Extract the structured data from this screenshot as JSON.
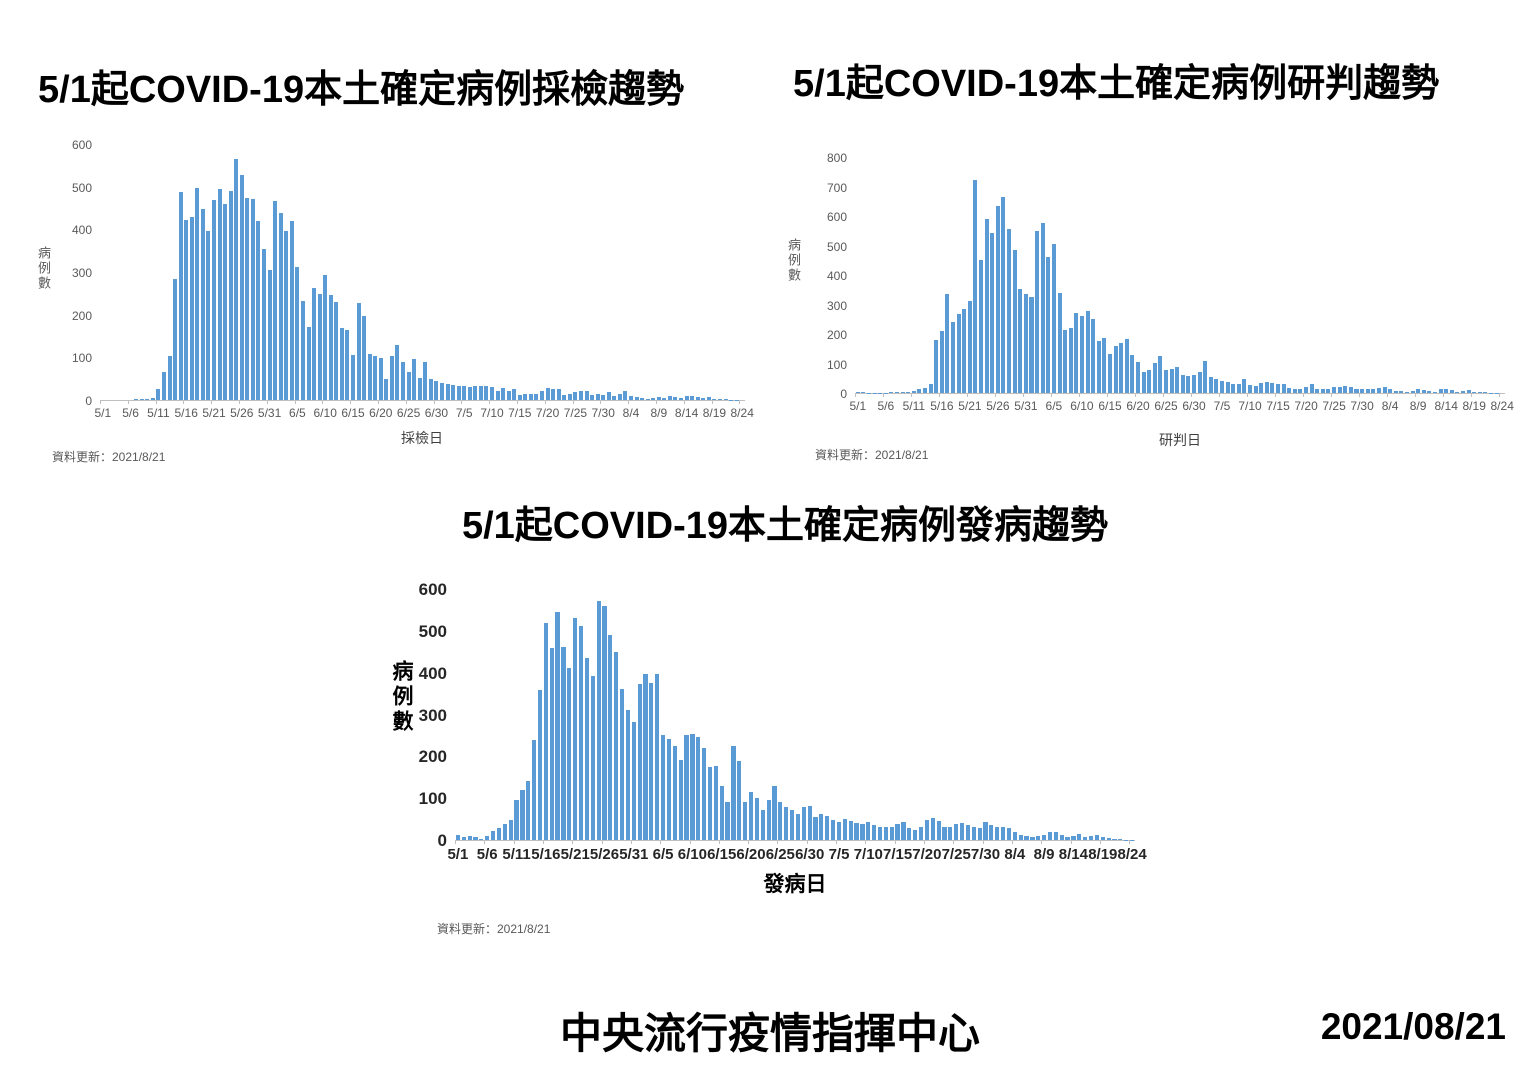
{
  "footer": {
    "organization": "中央流行疫情指揮中心",
    "date": "2021/08/21"
  },
  "colors": {
    "bar": "#5B9BD5",
    "axis_line": "#BFBFBF",
    "tick_text": "#595959",
    "title_text": "#000000"
  },
  "chart_data": [
    {
      "type": "bar",
      "title": "5/1起COVID-19本土確定病例採檢趨勢",
      "xlabel": "採檢日",
      "ylabel": "病例數",
      "update_note": "資料更新：2021/8/21",
      "ylim": [
        0,
        600
      ],
      "yticks": [
        0,
        100,
        200,
        300,
        400,
        500,
        600
      ],
      "x_tick_interval_days": 5,
      "x_tick_labels": [
        "5/1",
        "5/6",
        "5/11",
        "5/16",
        "5/21",
        "5/26",
        "5/31",
        "6/5",
        "6/10",
        "6/15",
        "6/20",
        "6/25",
        "6/30",
        "7/5",
        "7/10",
        "7/15",
        "7/20",
        "7/25",
        "7/30",
        "8/4",
        "8/9",
        "8/14",
        "8/19",
        "8/24"
      ],
      "values": [
        0,
        0,
        0,
        0,
        0,
        0,
        2,
        3,
        3,
        5,
        25,
        65,
        103,
        283,
        488,
        422,
        428,
        497,
        447,
        397,
        468,
        495,
        459,
        489,
        565,
        527,
        474,
        470,
        420,
        353,
        304,
        466,
        438,
        397,
        419,
        312,
        232,
        170,
        262,
        249,
        293,
        247,
        230,
        168,
        165,
        105,
        227,
        196,
        107,
        104,
        99,
        50,
        102,
        128,
        90,
        65,
        95,
        52,
        88,
        50,
        45,
        40,
        38,
        35,
        33,
        34,
        30,
        33,
        33,
        32,
        30,
        22,
        28,
        20,
        25,
        12,
        15,
        13,
        15,
        22,
        28,
        25,
        25,
        12,
        15,
        18,
        20,
        22,
        12,
        15,
        12,
        18,
        10,
        15,
        22,
        10,
        8,
        5,
        3,
        5,
        8,
        5,
        10,
        8,
        5,
        10,
        10,
        8,
        5,
        8,
        3,
        2,
        2,
        1,
        1,
        0
      ]
    },
    {
      "type": "bar",
      "title": "5/1起COVID-19本土確定病例研判趨勢",
      "xlabel": "研判日",
      "ylabel": "病例數",
      "update_note": "資料更新：2021/8/21",
      "ylim": [
        0,
        800
      ],
      "yticks": [
        0,
        100,
        200,
        300,
        400,
        500,
        600,
        700,
        800
      ],
      "x_tick_interval_days": 5,
      "x_tick_labels": [
        "5/1",
        "5/6",
        "5/11",
        "5/16",
        "5/21",
        "5/26",
        "5/31",
        "6/5",
        "6/10",
        "6/15",
        "6/20",
        "6/25",
        "6/30",
        "7/5",
        "7/10",
        "7/15",
        "7/20",
        "7/25",
        "7/30",
        "8/4",
        "8/9",
        "8/14",
        "8/19",
        "8/24"
      ],
      "values": [
        5,
        2,
        1,
        1,
        1,
        1,
        2,
        2,
        3,
        5,
        8,
        12,
        18,
        30,
        180,
        210,
        335,
        240,
        268,
        286,
        312,
        721,
        450,
        590,
        542,
        635,
        665,
        555,
        486,
        352,
        335,
        325,
        549,
        578,
        460,
        505,
        340,
        215,
        220,
        270,
        262,
        278,
        250,
        175,
        186,
        132,
        160,
        170,
        182,
        130,
        105,
        72,
        78,
        102,
        126,
        78,
        80,
        88,
        62,
        58,
        60,
        70,
        108,
        55,
        48,
        42,
        38,
        30,
        32,
        48,
        28,
        25,
        35,
        38,
        35,
        30,
        32,
        18,
        15,
        12,
        22,
        30,
        15,
        12,
        15,
        20,
        22,
        25,
        22,
        15,
        12,
        15,
        12,
        18,
        22,
        12,
        8,
        8,
        5,
        8,
        15,
        10,
        8,
        5,
        12,
        12,
        10,
        5,
        8,
        10,
        3,
        2,
        2,
        1,
        1,
        0
      ]
    },
    {
      "type": "bar",
      "title": "5/1起COVID-19本土確定病例發病趨勢",
      "xlabel": "發病日",
      "ylabel": "病例數",
      "update_note": "資料更新：2021/8/21",
      "ylim": [
        0,
        600
      ],
      "yticks": [
        0,
        100,
        200,
        300,
        400,
        500,
        600
      ],
      "x_tick_interval_days": 5,
      "x_tick_labels": [
        "5/1",
        "5/6",
        "5/11",
        "5/16",
        "5/21",
        "5/26",
        "5/31",
        "6/5",
        "6/10",
        "6/15",
        "6/20",
        "6/25",
        "6/30",
        "7/5",
        "7/10",
        "7/15",
        "7/20",
        "7/25",
        "7/30",
        "8/4",
        "8/9",
        "8/14",
        "8/19",
        "8/24"
      ],
      "values": [
        12,
        8,
        10,
        8,
        3,
        10,
        22,
        28,
        38,
        48,
        96,
        120,
        140,
        240,
        358,
        518,
        460,
        546,
        462,
        410,
        530,
        512,
        435,
        392,
        572,
        560,
        490,
        450,
        360,
        310,
        282,
        372,
        396,
        375,
        398,
        250,
        242,
        225,
        192,
        250,
        253,
        246,
        220,
        175,
        178,
        130,
        90,
        225,
        190,
        92,
        115,
        100,
        72,
        95,
        130,
        92,
        80,
        72,
        62,
        78,
        82,
        55,
        62,
        58,
        48,
        42,
        50,
        45,
        40,
        38,
        42,
        35,
        30,
        32,
        30,
        38,
        42,
        28,
        25,
        30,
        48,
        52,
        45,
        30,
        32,
        38,
        40,
        35,
        30,
        28,
        42,
        35,
        30,
        32,
        28,
        20,
        12,
        10,
        8,
        10,
        12,
        18,
        20,
        12,
        8,
        10,
        15,
        8,
        10,
        12,
        8,
        5,
        3,
        2,
        1,
        1
      ]
    }
  ]
}
